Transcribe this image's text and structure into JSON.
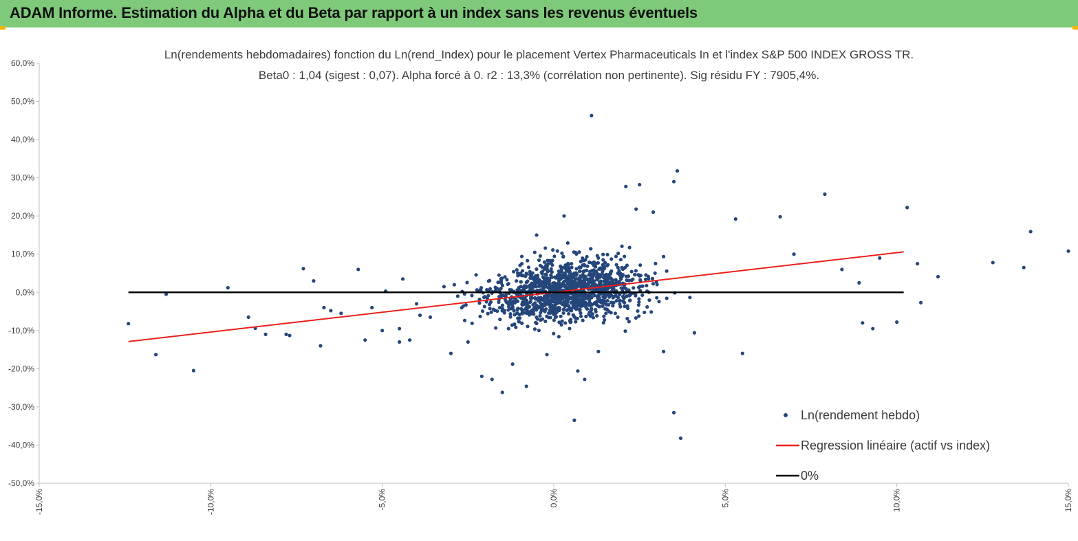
{
  "header": {
    "title": "ADAM Informe. Estimation du Alpha et du Beta par rapport à un index sans les revenus éventuels",
    "banner_color": "#7fc97a"
  },
  "chart_data": {
    "type": "scatter",
    "title": "Ln(rendements hebdomadaires) fonction du Ln(rend_Index) pour le placement Vertex Pharmaceuticals In  et l'index S&P 500 INDEX GROSS TR.",
    "subtitle": "Beta0 : 1,04 (sigest : 0,07). Alpha forcé à 0. r2 : 13,3% (corrélation non pertinente). Sig résidu FY : 7905,4%.",
    "xlim": [
      -15,
      15
    ],
    "ylim": [
      -50,
      60
    ],
    "x_ticks": [
      "-15,0%",
      "-10,0%",
      "-5,0%",
      "0,0%",
      "5,0%",
      "10,0%",
      "15,0%"
    ],
    "y_ticks": [
      "60,0%",
      "50,0%",
      "40,0%",
      "30,0%",
      "20,0%",
      "10,0%",
      "0,0%",
      "-10,0%",
      "-20,0%",
      "-30,0%",
      "-40,0%",
      "-50,0%"
    ],
    "legend_position": "bottom-right",
    "series": [
      {
        "name": "Ln(rendement hebdo)",
        "kind": "scatter",
        "color": "#25467a",
        "points": [
          [
            -12.4,
            -8.2
          ],
          [
            -11.6,
            -16.3
          ],
          [
            -11.3,
            -0.5
          ],
          [
            -10.5,
            -20.5
          ],
          [
            -9.5,
            1.2
          ],
          [
            -8.9,
            -6.5
          ],
          [
            -8.7,
            -9.4
          ],
          [
            -8.4,
            -11.0
          ],
          [
            -7.8,
            -11.0
          ],
          [
            -7.7,
            -11.3
          ],
          [
            -7.3,
            6.2
          ],
          [
            -7.0,
            3.0
          ],
          [
            -6.8,
            -14.0
          ],
          [
            -6.7,
            -4.0
          ],
          [
            -6.5,
            -4.8
          ],
          [
            -6.2,
            -5.5
          ],
          [
            -5.7,
            6.0
          ],
          [
            -5.5,
            -12.5
          ],
          [
            -5.3,
            -4.0
          ],
          [
            -5.0,
            -10.0
          ],
          [
            -4.9,
            0.3
          ],
          [
            -4.5,
            -13.0
          ],
          [
            -4.5,
            -9.5
          ],
          [
            -4.4,
            3.5
          ],
          [
            -4.2,
            -12.5
          ],
          [
            -4.0,
            -3.0
          ],
          [
            -3.9,
            -6.0
          ],
          [
            -3.6,
            -6.5
          ],
          [
            -3.2,
            1.5
          ],
          [
            -2.9,
            2.0
          ],
          [
            -3.0,
            -16.0
          ],
          [
            -2.8,
            -1.0
          ],
          [
            -2.5,
            -13.0
          ],
          [
            -2.1,
            -22.0
          ],
          [
            -1.8,
            -22.8
          ],
          [
            -1.5,
            -26.2
          ],
          [
            -1.2,
            -18.8
          ],
          [
            -0.8,
            -24.6
          ],
          [
            -0.5,
            15.0
          ],
          [
            -0.2,
            -16.3
          ],
          [
            0.1,
            -1.5
          ],
          [
            0.3,
            20.0
          ],
          [
            0.6,
            -33.5
          ],
          [
            0.7,
            -20.6
          ],
          [
            0.9,
            -22.8
          ],
          [
            1.1,
            46.3
          ],
          [
            1.3,
            -15.5
          ],
          [
            2.1,
            27.7
          ],
          [
            2.4,
            21.8
          ],
          [
            2.5,
            28.2
          ],
          [
            2.9,
            21.0
          ],
          [
            3.2,
            -15.5
          ],
          [
            3.5,
            29.0
          ],
          [
            3.6,
            31.8
          ],
          [
            3.5,
            -31.5
          ],
          [
            3.7,
            -38.2
          ],
          [
            4.1,
            -10.6
          ],
          [
            5.3,
            19.2
          ],
          [
            5.5,
            -16.0
          ],
          [
            6.6,
            19.8
          ],
          [
            7.0,
            10.0
          ],
          [
            7.9,
            25.7
          ],
          [
            8.4,
            6.0
          ],
          [
            8.9,
            2.5
          ],
          [
            9.0,
            -8.0
          ],
          [
            9.3,
            -9.5
          ],
          [
            9.5,
            9.0
          ],
          [
            10.0,
            -7.8
          ],
          [
            10.3,
            22.2
          ],
          [
            10.6,
            7.5
          ],
          [
            10.7,
            -2.7
          ],
          [
            11.2,
            4.1
          ],
          [
            12.8,
            7.8
          ],
          [
            13.7,
            6.5
          ],
          [
            13.9,
            15.9
          ],
          [
            15.0,
            10.8
          ]
        ]
      },
      {
        "name": "Regression linéaire (actif vs index)",
        "kind": "line",
        "color": "#e8201c",
        "points": [
          [
            -12.4,
            -12.9
          ],
          [
            10.2,
            10.6
          ]
        ]
      },
      {
        "name": "0%",
        "kind": "line",
        "color": "#000000",
        "points": [
          [
            -12.4,
            0
          ],
          [
            10.2,
            0
          ]
        ]
      }
    ],
    "cluster": {
      "description_series": "Ln(rendement hebdo)",
      "center_x": 0.4,
      "center_y": 0.5,
      "spread_x": 1.6,
      "spread_y": 5.5,
      "count": 1300,
      "beta": 1.04
    }
  }
}
